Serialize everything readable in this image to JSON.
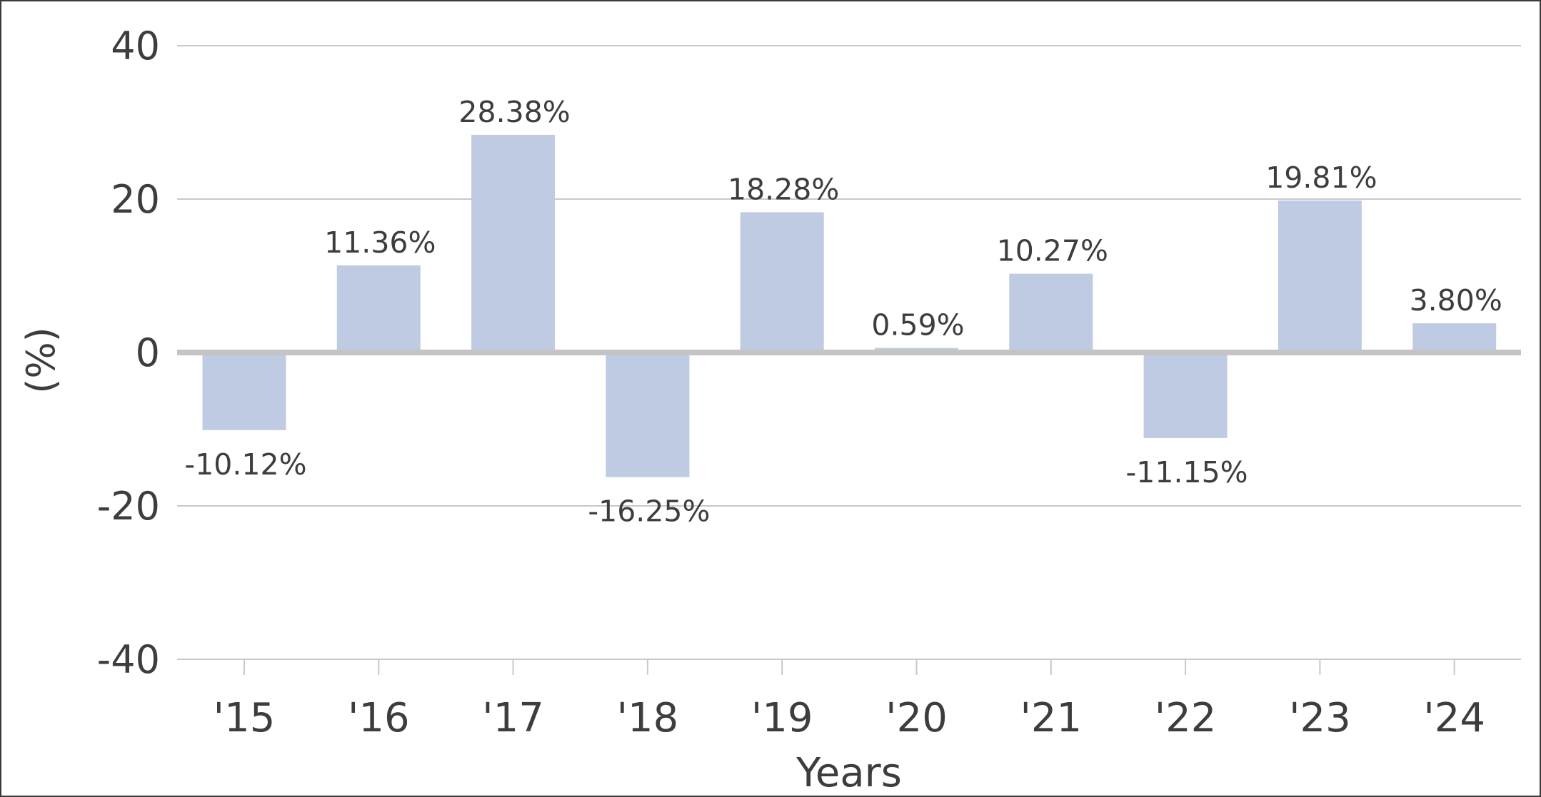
{
  "chart_data": {
    "type": "bar",
    "categories": [
      "'15",
      "'16",
      "'17",
      "'18",
      "'19",
      "'20",
      "'21",
      "'22",
      "'23",
      "'24"
    ],
    "values": [
      -10.12,
      11.36,
      28.38,
      -16.25,
      18.28,
      0.59,
      10.27,
      -11.15,
      19.81,
      3.8
    ],
    "data_labels": [
      "-10.12%",
      "11.36%",
      "28.38%",
      "-16.25%",
      "18.28%",
      "0.59%",
      "10.27%",
      "-11.15%",
      "19.81%",
      "3.80%"
    ],
    "xlabel": "Years",
    "ylabel": "(%)",
    "ylim": [
      -40,
      40
    ],
    "yticks": [
      40,
      20,
      0,
      -20,
      -40
    ],
    "ytick_labels": [
      "40",
      "20",
      "0",
      "-20",
      "-40"
    ],
    "grid": true,
    "colors": {
      "bar": "#bfcbe2",
      "grid": "#c8c8c8",
      "zero_line": "#c4c4c4",
      "text": "#3d3d3d",
      "border": "#3a3a3a"
    }
  }
}
